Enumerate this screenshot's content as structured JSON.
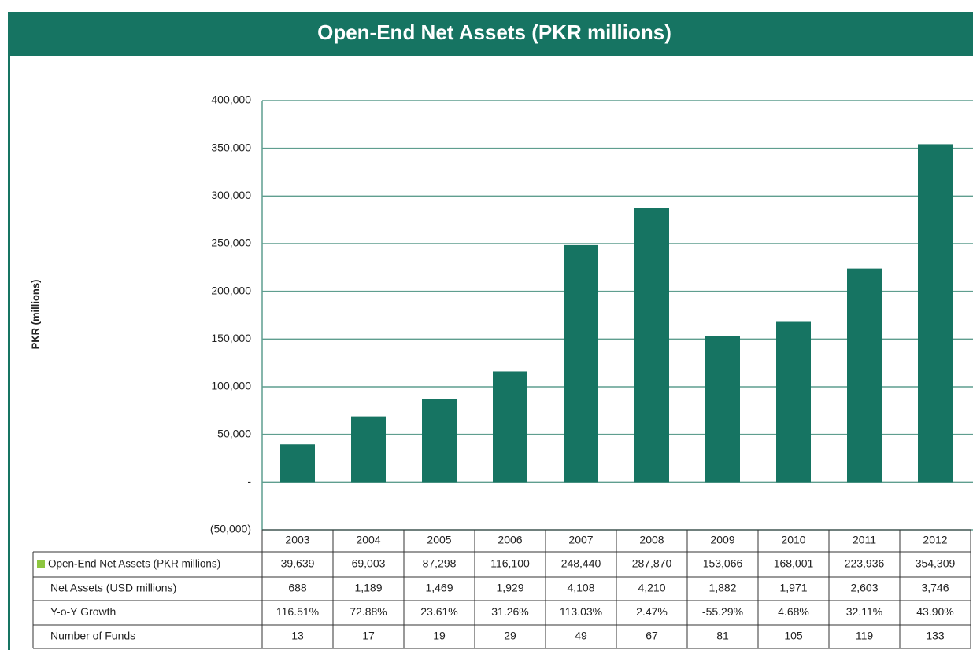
{
  "chart_data": {
    "type": "bar",
    "title": "Open-End Net Assets (PKR millions)",
    "y_label": "PKR (millions)",
    "categories": [
      "2003",
      "2004",
      "2005",
      "2006",
      "2007",
      "2008",
      "2009",
      "2010",
      "2011",
      "2012"
    ],
    "series": [
      {
        "name": "Open-End Net Assets (PKR millions)",
        "color": "#167462",
        "values": [
          39639,
          69003,
          87298,
          116100,
          248440,
          287870,
          153066,
          168001,
          223936,
          354309
        ],
        "value_labels": [
          "39,639",
          "69,003",
          "87,298",
          "116,100",
          "248,440",
          "287,870",
          "153,066",
          "168,001",
          "223,936",
          "354,309"
        ]
      }
    ],
    "legend_color": "#8dc63f",
    "ylim": [
      -50000,
      400000
    ],
    "yticks": [
      {
        "value": -50000,
        "label": "(50,000)"
      },
      {
        "value": 0,
        "label": "-"
      },
      {
        "value": 50000,
        "label": "50,000"
      },
      {
        "value": 100000,
        "label": "100,000"
      },
      {
        "value": 150000,
        "label": "150,000"
      },
      {
        "value": 200000,
        "label": "200,000"
      },
      {
        "value": 250000,
        "label": "250,000"
      },
      {
        "value": 300000,
        "label": "300,000"
      },
      {
        "value": 350000,
        "label": "350,000"
      },
      {
        "value": 400000,
        "label": "400,000"
      }
    ],
    "grid": true,
    "table_rows": [
      {
        "name": "Net Assets (USD millions)",
        "cells": [
          "688",
          "1,189",
          "1,469",
          "1,929",
          "4,108",
          "4,210",
          "1,882",
          "1,971",
          "2,603",
          "3,746"
        ]
      },
      {
        "name": "Y-o-Y Growth",
        "cells": [
          "116.51%",
          "72.88%",
          "23.61%",
          "31.26%",
          "113.03%",
          "2.47%",
          "-55.29%",
          "4.68%",
          "32.11%",
          "43.90%"
        ]
      },
      {
        "name": "Number of Funds",
        "cells": [
          "13",
          "17",
          "19",
          "29",
          "49",
          "67",
          "81",
          "105",
          "119",
          "133"
        ]
      }
    ]
  }
}
